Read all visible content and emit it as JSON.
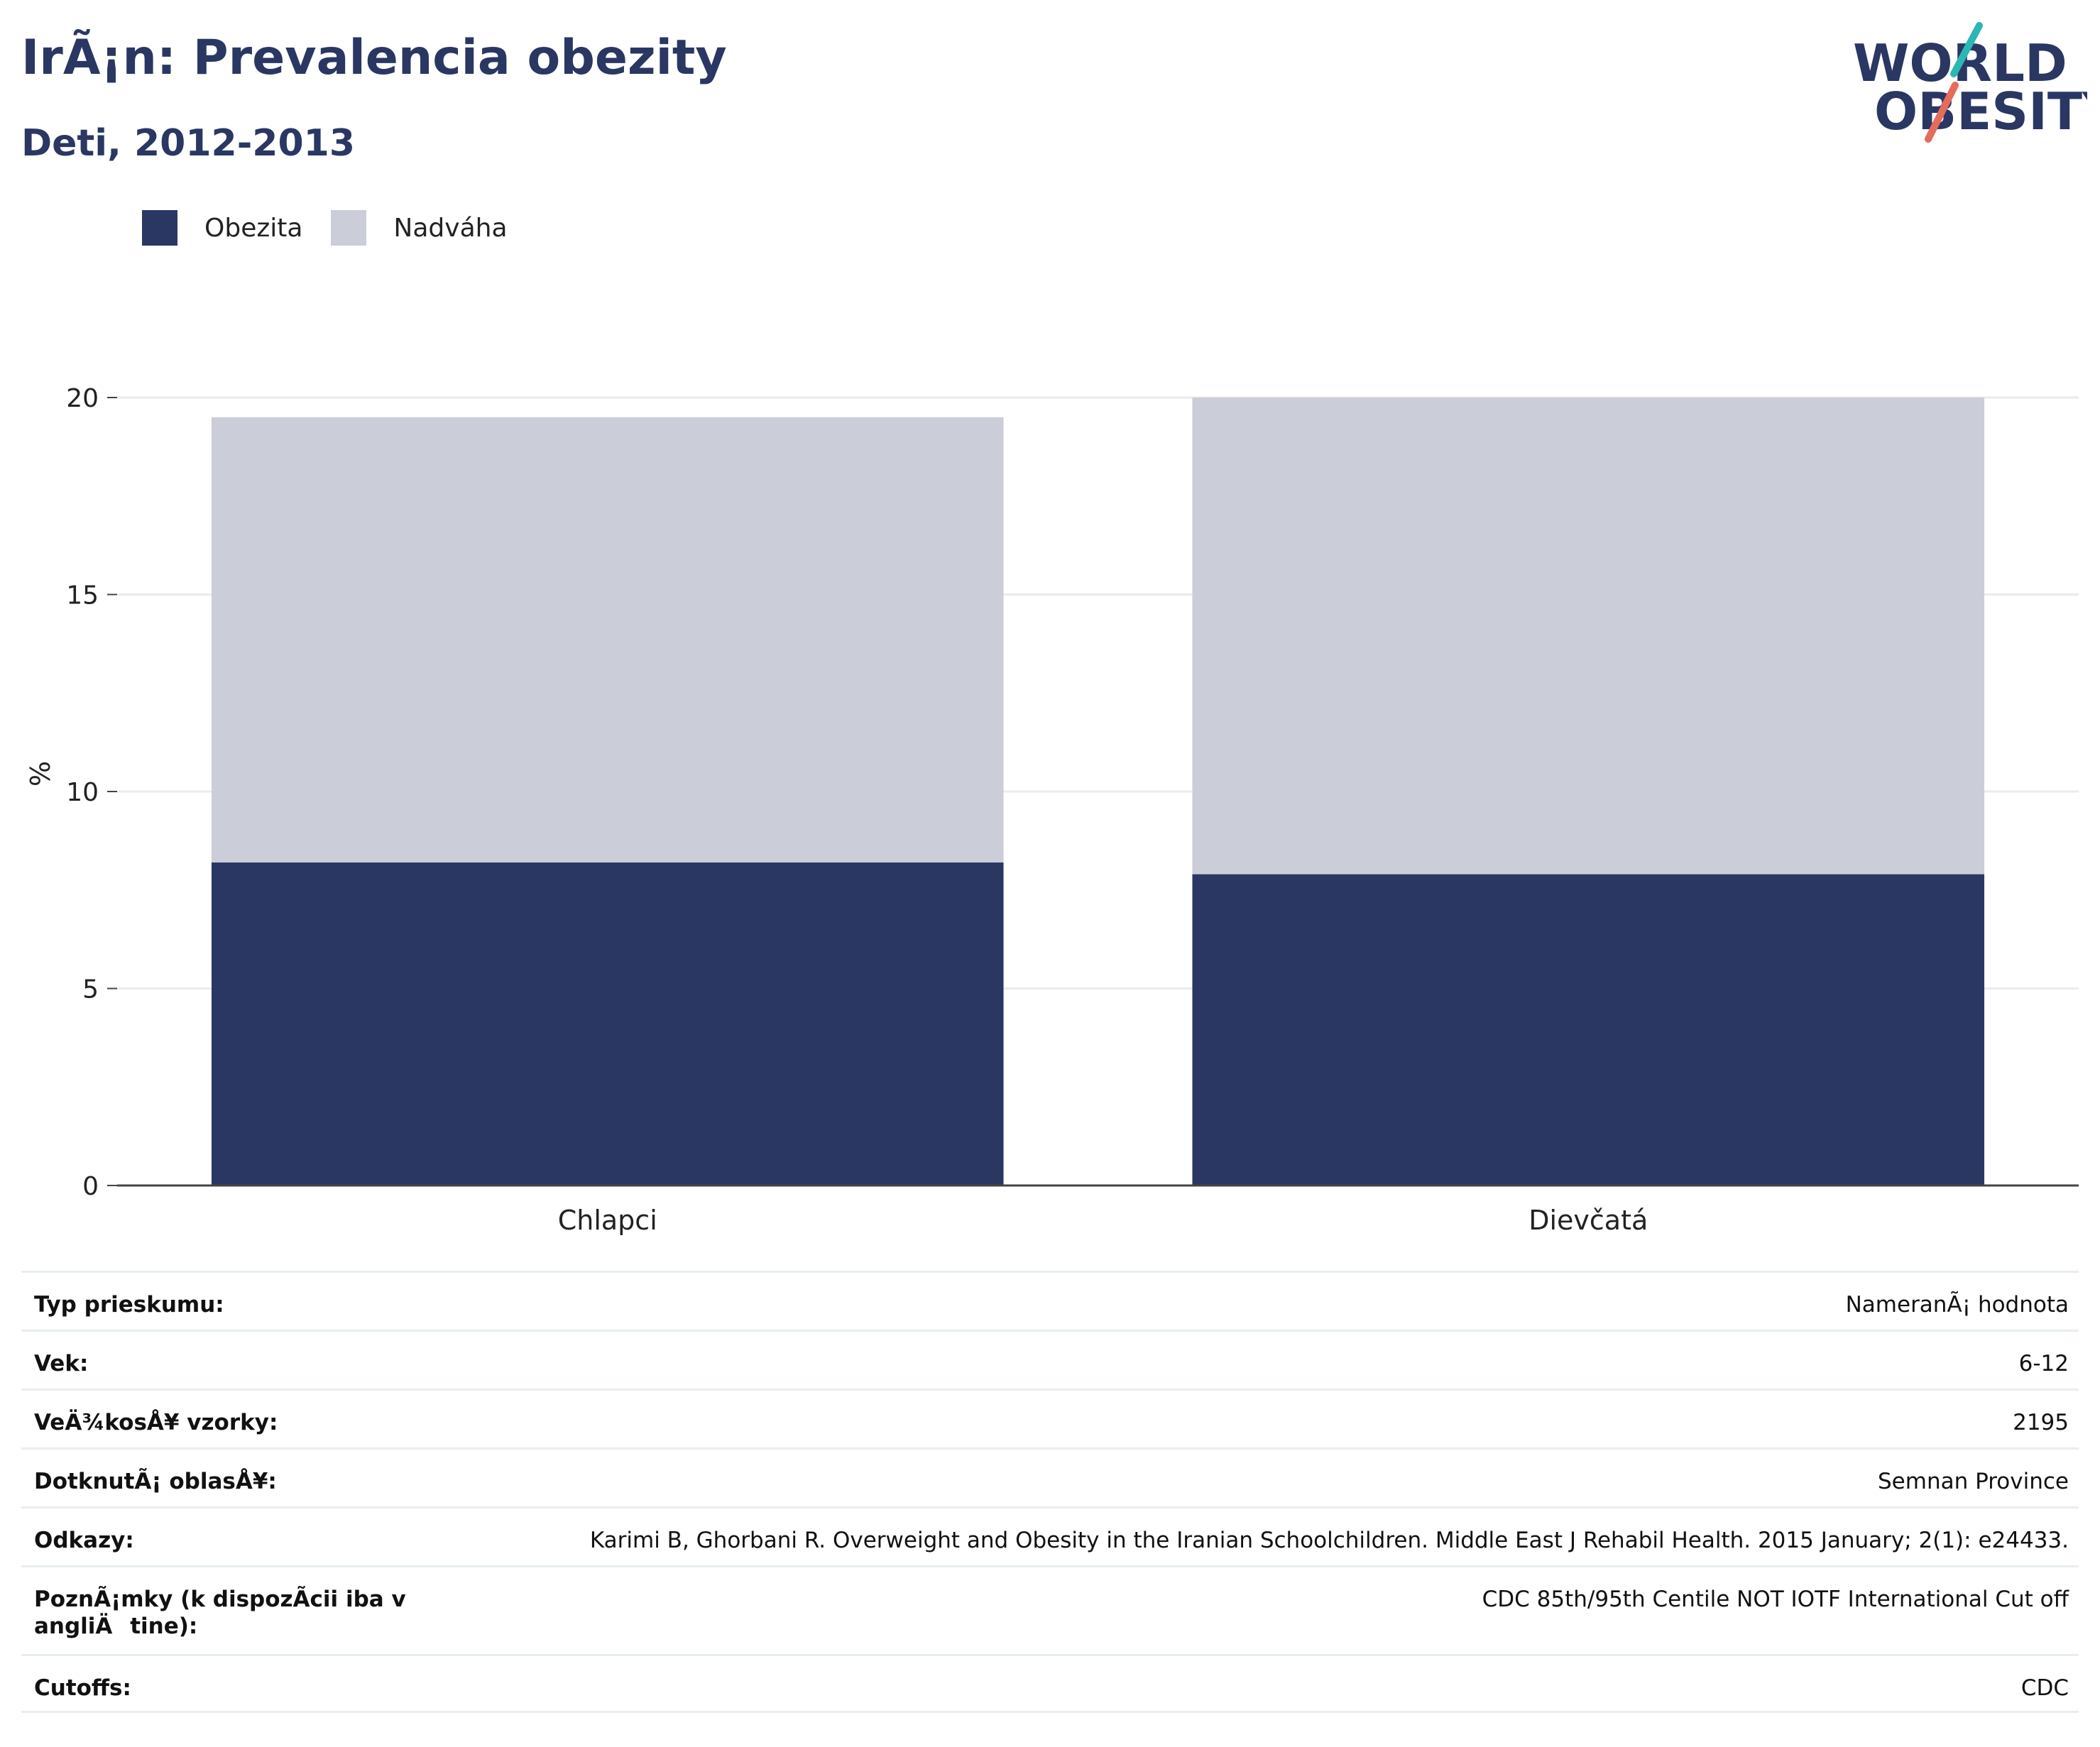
{
  "header": {
    "title": "IrÃ¡n: Prevalencia obezity",
    "subtitle": "Deti, 2012-2013"
  },
  "logo": {
    "line1": "WORLD",
    "line2": "OBESITY"
  },
  "legend": {
    "items": [
      {
        "label": "Obezita",
        "color": "#2a3763"
      },
      {
        "label": "Nadváha",
        "color": "#cbcdd8"
      }
    ]
  },
  "chart_data": {
    "type": "bar",
    "stacked": true,
    "categories": [
      "Chlapci",
      "Dievčatá"
    ],
    "series": [
      {
        "name": "Obezita",
        "color": "#2a3763",
        "values": [
          8.2,
          7.9
        ]
      },
      {
        "name": "Nadváha",
        "color": "#cbcdd8",
        "values": [
          11.3,
          12.1
        ]
      }
    ],
    "xlabel": "",
    "ylabel": "%",
    "ylim": [
      0,
      20
    ],
    "yticks": [
      0,
      5,
      10,
      15,
      20
    ],
    "grid": true,
    "legend_position": "top-left"
  },
  "info_table": {
    "rows": [
      {
        "key": "Typ prieskumu:",
        "value": "NameranÃ¡ hodnota"
      },
      {
        "key": "Vek:",
        "value": "6-12"
      },
      {
        "key": "VeÄ¾kosÅ¥ vzorky:",
        "value": "2195"
      },
      {
        "key": "DotknutÃ¡ oblasÅ¥:",
        "value": "Semnan Province"
      },
      {
        "key": "Odkazy:",
        "value": "Karimi B, Ghorbani R. Overweight and Obesity in the Iranian Schoolchildren. Middle East J Rehabil Health. 2015 January; 2(1): e24433."
      },
      {
        "key": "PoznÃ¡mky (k dispozÃ­cii iba v angliÄtine):",
        "value": "CDC 85th/95th Centile NOT IOTF International Cut off"
      },
      {
        "key": "Cutoffs:",
        "value": "CDC"
      }
    ]
  }
}
